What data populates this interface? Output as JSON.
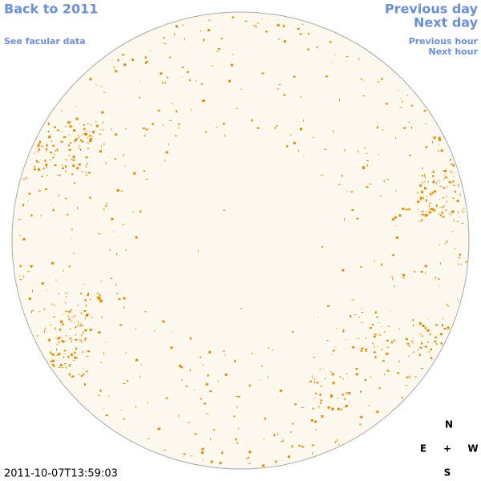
{
  "links": {
    "back": "Back to 2011",
    "facular": "See facular data",
    "previous_day": "Previous day",
    "next_day": "Next day",
    "previous_hour": "Previous hour",
    "next_hour": "Next hour"
  },
  "compass": {
    "north": "N",
    "east": "E",
    "center": "+",
    "west": "W",
    "south": "S"
  },
  "timestamp": "2011-10-07T13:59:03"
}
